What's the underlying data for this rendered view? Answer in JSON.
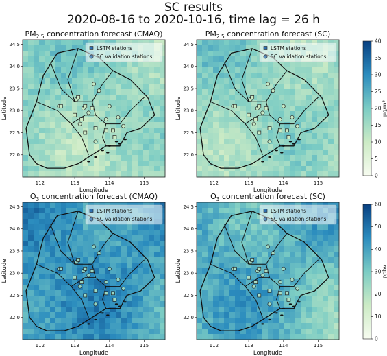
{
  "figure": {
    "title": "SC results",
    "subtitle": "2020-08-16 to 2020-10-16, time lag = 26 h"
  },
  "chart_data": [
    {
      "type": "heatmap",
      "panel": "pm25-cmaq",
      "title": "PM2.5 concentration forecast (CMAQ)",
      "title_parts": [
        "PM",
        "2.5",
        " concentration forecast (CMAQ)"
      ],
      "xlabel": "Longitude",
      "ylabel": "Latitude",
      "xlim": [
        111.5,
        115.6
      ],
      "ylim": [
        21.5,
        24.6
      ],
      "xticks": [
        "112",
        "113",
        "114",
        "115"
      ],
      "yticks": [
        "22.0",
        "22.5",
        "23.0",
        "23.5",
        "24.0",
        "24.5"
      ],
      "legend": [
        "LSTM stations",
        "SC validation stations"
      ],
      "legend_position": "top-right",
      "value_range": [
        0,
        40
      ],
      "field_mean": 18
    },
    {
      "type": "heatmap",
      "panel": "pm25-sc",
      "title": "PM2.5 concentration forecast (SC)",
      "title_parts": [
        "PM",
        "2.5",
        " concentration forecast (SC)"
      ],
      "xlabel": "Longitude",
      "ylabel": "Latitude",
      "xlim": [
        111.5,
        115.6
      ],
      "ylim": [
        21.5,
        24.6
      ],
      "xticks": [
        "112",
        "113",
        "114",
        "115"
      ],
      "yticks": [
        "22.0",
        "22.5",
        "23.0",
        "23.5",
        "24.0",
        "24.5"
      ],
      "legend": [
        "LSTM stations",
        "SC validation stations"
      ],
      "legend_position": "top-right",
      "value_range": [
        0,
        40
      ],
      "field_mean": 18
    },
    {
      "type": "heatmap",
      "panel": "o3-cmaq",
      "title": "O3 concentration forecast (CMAQ)",
      "title_parts": [
        "O",
        "3",
        " concentration forecast (CMAQ)"
      ],
      "xlabel": "Longitude",
      "ylabel": "Latitude",
      "xlim": [
        111.5,
        115.6
      ],
      "ylim": [
        21.5,
        24.6
      ],
      "xticks": [
        "112",
        "113",
        "114",
        "115"
      ],
      "yticks": [
        "22.0",
        "22.5",
        "23.0",
        "23.5",
        "24.0",
        "24.5"
      ],
      "legend": [
        "LSTM stations",
        "SC validation stations"
      ],
      "legend_position": "top-right",
      "value_range": [
        0,
        60
      ],
      "field_mean": 44
    },
    {
      "type": "heatmap",
      "panel": "o3-sc",
      "title": "O3 concentration forecast (SC)",
      "title_parts": [
        "O",
        "3",
        " concentration forecast (SC)"
      ],
      "xlabel": "Longitude",
      "ylabel": "Latitude",
      "xlim": [
        111.5,
        115.6
      ],
      "ylim": [
        21.5,
        24.6
      ],
      "xticks": [
        "112",
        "113",
        "114",
        "115"
      ],
      "yticks": [
        "22.0",
        "22.5",
        "23.0",
        "23.5",
        "24.0",
        "24.5"
      ],
      "legend": [
        "LSTM stations",
        "SC validation stations"
      ],
      "legend_position": "top-right",
      "value_range": [
        0,
        60
      ],
      "field_mean": 38
    }
  ],
  "colorbars": [
    {
      "label": "μg/m³",
      "ticks": [
        0,
        5,
        10,
        15,
        20,
        25,
        30,
        35,
        40
      ],
      "range": [
        0,
        40
      ]
    },
    {
      "label": "ppbv",
      "ticks": [
        0,
        10,
        20,
        30,
        40,
        50,
        60
      ],
      "range": [
        0,
        60
      ]
    }
  ],
  "stations": {
    "lstm": [
      [
        112.6,
        23.1
      ],
      [
        113.1,
        23.3
      ],
      [
        113.3,
        23.1
      ],
      [
        113.5,
        23.05
      ],
      [
        113.2,
        22.8
      ],
      [
        113.6,
        22.6
      ],
      [
        113.9,
        22.55
      ],
      [
        114.1,
        22.55
      ],
      [
        113.0,
        22.9
      ],
      [
        113.3,
        22.5
      ],
      [
        114.15,
        22.4
      ]
    ],
    "sc": [
      [
        113.55,
        23.6
      ],
      [
        113.7,
        23.45
      ],
      [
        113.05,
        23.25
      ],
      [
        112.55,
        23.1
      ],
      [
        114.0,
        23.1
      ],
      [
        114.25,
        22.85
      ],
      [
        113.6,
        22.3
      ],
      [
        113.25,
        23.05
      ],
      [
        113.9,
        22.8
      ],
      [
        113.15,
        22.7
      ],
      [
        114.4,
        22.65
      ],
      [
        113.4,
        22.95
      ]
    ]
  },
  "colors": {
    "scale": [
      "#f7fcf0",
      "#ccebc5",
      "#7bccc4",
      "#2b8cbe",
      "#084081"
    ],
    "station_lstm": "#2f6fb0",
    "station_sc": "#5c8fbf",
    "boundary": "#111111"
  }
}
